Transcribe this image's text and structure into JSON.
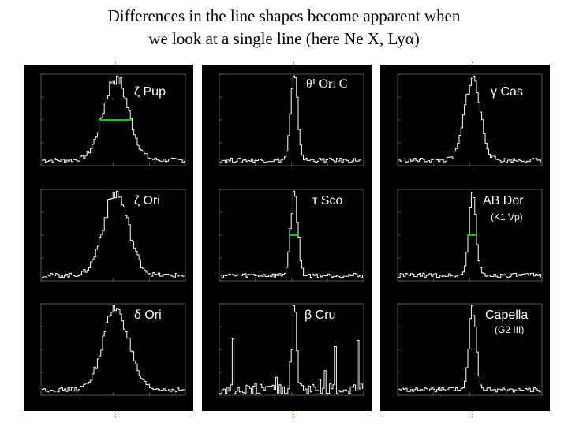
{
  "slide": {
    "title_line1": "Differences in the line shapes become apparent when",
    "title_line2": "we look at a single line (here Ne X, Lyα)"
  },
  "colors": {
    "line_marker": "#22bb22",
    "ref_line": "#9a9a50",
    "panel_bg": "#000000",
    "trace": "#ffffff"
  },
  "panels": [
    {
      "id": "zeta-pup",
      "label": "ζ Pup",
      "sublabel": "",
      "line_shape": "broad",
      "has_width_marker": true
    },
    {
      "id": "theta1-ori-c",
      "label": "θ¹ Ori C",
      "sublabel": "",
      "line_shape": "narrow",
      "has_width_marker": false
    },
    {
      "id": "gamma-cas",
      "label": "γ Cas",
      "sublabel": "",
      "line_shape": "medium",
      "has_width_marker": false
    },
    {
      "id": "zeta-ori",
      "label": "ζ Ori",
      "sublabel": "",
      "line_shape": "broad",
      "has_width_marker": false
    },
    {
      "id": "tau-sco",
      "label": "τ Sco",
      "sublabel": "",
      "line_shape": "narrow",
      "has_width_marker": true
    },
    {
      "id": "ab-dor",
      "label": "AB Dor",
      "sublabel": "(K1 Vp)",
      "line_shape": "narrow",
      "has_width_marker": true
    },
    {
      "id": "delta-ori",
      "label": "δ Ori",
      "sublabel": "",
      "line_shape": "broad",
      "has_width_marker": false
    },
    {
      "id": "beta-cru",
      "label": "β Cru",
      "sublabel": "",
      "line_shape": "noisy",
      "has_width_marker": false
    },
    {
      "id": "capella",
      "label": "Capella",
      "sublabel": "(G2 III)",
      "line_shape": "narrow",
      "has_width_marker": false
    }
  ]
}
